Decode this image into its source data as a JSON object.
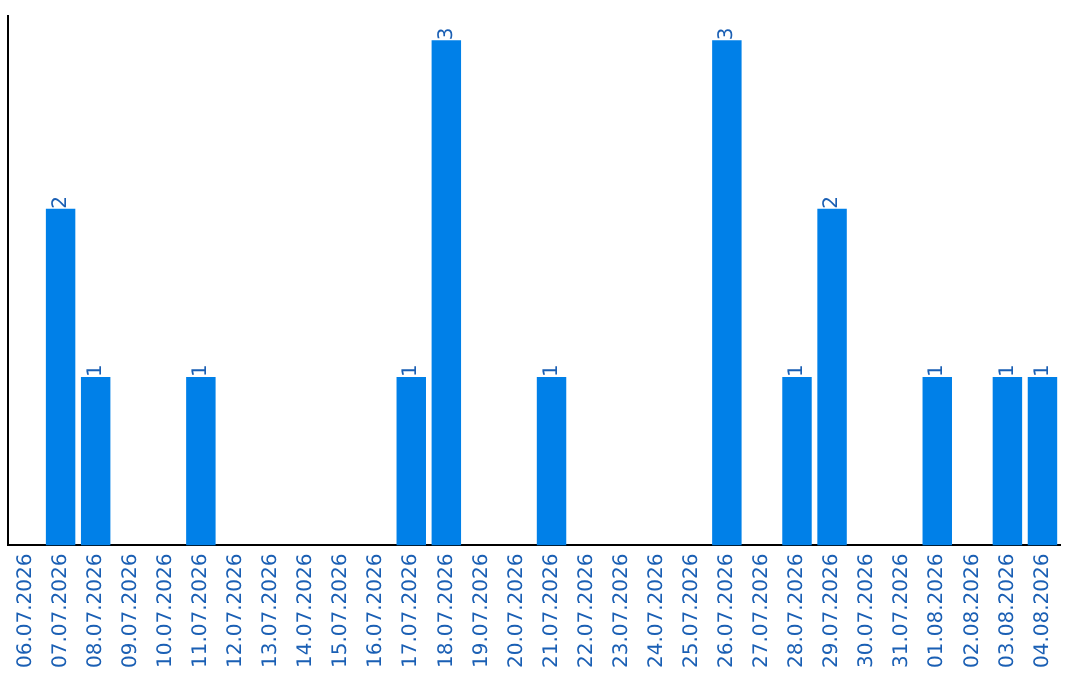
{
  "chart_data": {
    "type": "bar",
    "categories": [
      "06.07.2026",
      "07.07.2026",
      "08.07.2026",
      "09.07.2026",
      "10.07.2026",
      "11.07.2026",
      "12.07.2026",
      "13.07.2026",
      "14.07.2026",
      "15.07.2026",
      "16.07.2026",
      "17.07.2026",
      "18.07.2026",
      "19.07.2026",
      "20.07.2026",
      "21.07.2026",
      "22.07.2026",
      "23.07.2026",
      "24.07.2026",
      "25.07.2026",
      "26.07.2026",
      "27.07.2026",
      "28.07.2026",
      "29.07.2026",
      "30.07.2026",
      "31.07.2026",
      "01.08.2026",
      "02.08.2026",
      "03.08.2026",
      "04.08.2026"
    ],
    "values": [
      0,
      2,
      1,
      0,
      0,
      1,
      0,
      0,
      0,
      0,
      0,
      1,
      3,
      0,
      0,
      1,
      0,
      0,
      0,
      0,
      3,
      0,
      1,
      2,
      0,
      0,
      1,
      0,
      1,
      1
    ],
    "value_labels": [
      null,
      "2",
      "1",
      null,
      null,
      "1",
      null,
      null,
      null,
      null,
      null,
      "1",
      "3",
      null,
      null,
      "1",
      null,
      null,
      null,
      null,
      "3",
      null,
      "1",
      "2",
      null,
      null,
      "1",
      null,
      "1",
      "1"
    ],
    "color": "#0080e8",
    "grid": false,
    "legend": false
  }
}
